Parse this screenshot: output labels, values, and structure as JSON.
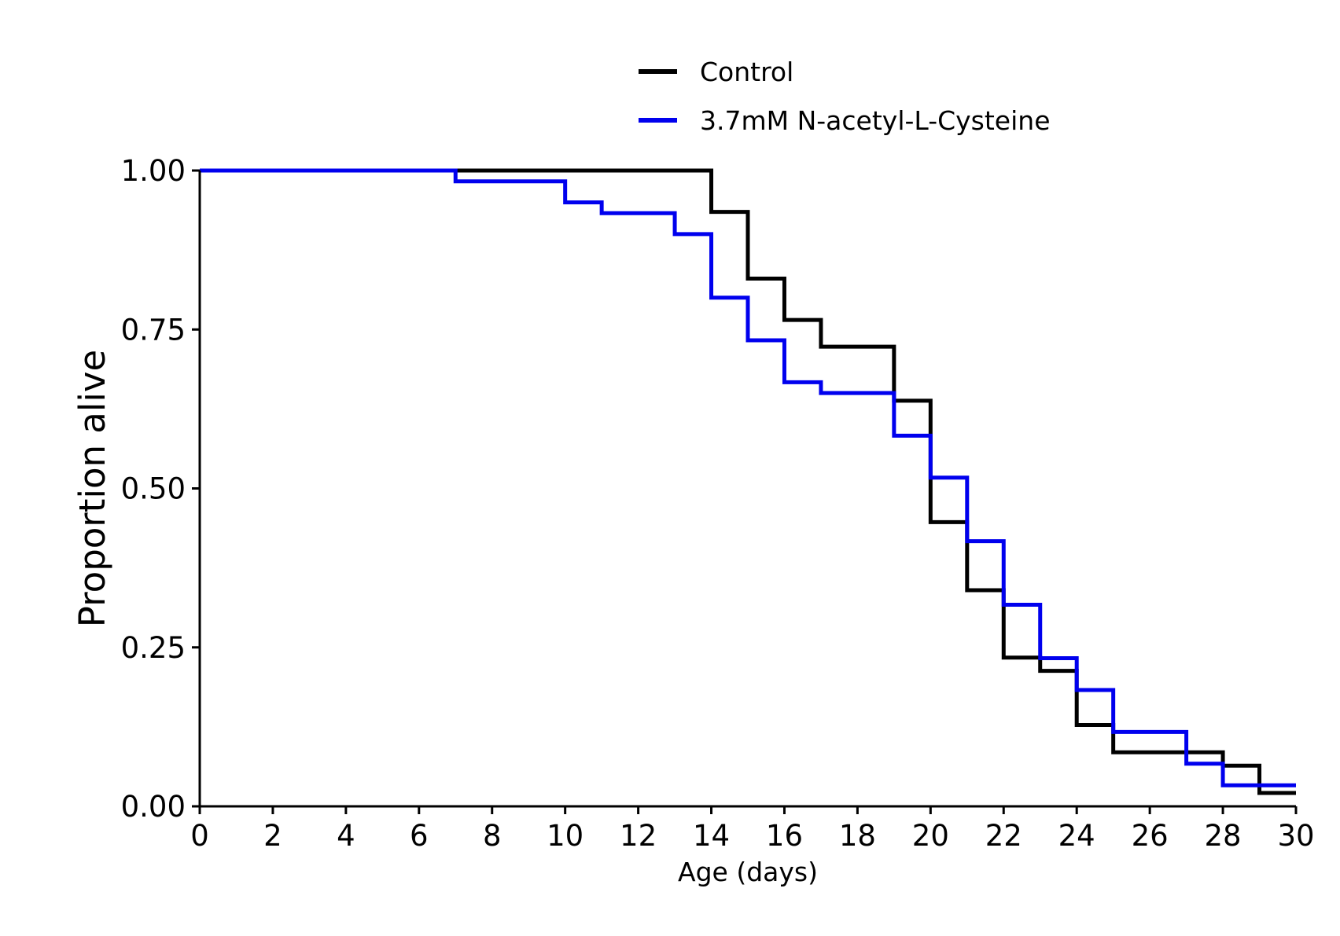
{
  "chart_data": {
    "type": "line",
    "step": "post",
    "xlabel": "Age (days)",
    "ylabel": "Proportion alive",
    "xlim": [
      0,
      30
    ],
    "ylim": [
      0,
      1
    ],
    "x_ticks": [
      0,
      2,
      4,
      6,
      8,
      10,
      12,
      14,
      16,
      18,
      20,
      22,
      24,
      26,
      28,
      30
    ],
    "x_tick_labels": [
      "0",
      "2",
      "4",
      "6",
      "8",
      "10",
      "12",
      "14",
      "16",
      "18",
      "20",
      "22",
      "24",
      "26",
      "28",
      "30"
    ],
    "y_ticks": [
      0,
      0.25,
      0.5,
      0.75,
      1
    ],
    "y_tick_labels": [
      "0.00",
      "0.25",
      "0.50",
      "0.75",
      "1.00"
    ],
    "grid": false,
    "legend_position": "top-center",
    "series": [
      {
        "name": "Control",
        "color": "#000000",
        "x": [
          0,
          14,
          15,
          16,
          17,
          19,
          20,
          21,
          22,
          23,
          24,
          25,
          28,
          29,
          30
        ],
        "y": [
          1.0,
          0.935,
          0.83,
          0.765,
          0.723,
          0.638,
          0.447,
          0.34,
          0.234,
          0.213,
          0.128,
          0.085,
          0.064,
          0.021,
          0.021
        ]
      },
      {
        "name": "3.7mM N-acetyl-L-Cysteine",
        "color": "#0000ee",
        "x": [
          0,
          7,
          10,
          11,
          13,
          14,
          15,
          16,
          17,
          19,
          20,
          21,
          22,
          23,
          24,
          25,
          27,
          28,
          30
        ],
        "y": [
          1.0,
          0.983,
          0.95,
          0.933,
          0.9,
          0.8,
          0.733,
          0.667,
          0.65,
          0.583,
          0.517,
          0.417,
          0.317,
          0.233,
          0.183,
          0.117,
          0.067,
          0.033,
          0.033
        ]
      }
    ]
  }
}
